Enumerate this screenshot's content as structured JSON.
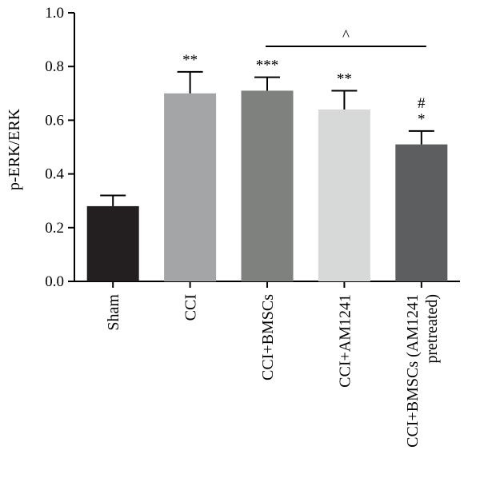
{
  "chart_data": {
    "type": "bar",
    "title": "",
    "xlabel": "",
    "ylabel": "p-ERK/ERK",
    "ylim": [
      0.0,
      1.0
    ],
    "yticks": [
      "0.0",
      "0.2",
      "0.4",
      "0.6",
      "0.8",
      "1.0"
    ],
    "grid": false,
    "categories": [
      [
        "Sham"
      ],
      [
        "CCI"
      ],
      [
        "CCI+BMSCs"
      ],
      [
        "CCI+AM1241"
      ],
      [
        "CCI+BMSCs (AM1241",
        "pretreated)"
      ]
    ],
    "values": [
      0.28,
      0.7,
      0.71,
      0.64,
      0.51
    ],
    "errors": [
      0.04,
      0.08,
      0.05,
      0.07,
      0.05
    ],
    "colors": [
      "#231f20",
      "#a4a5a7",
      "#7f817f",
      "#d7d8d8",
      "#5d5e60"
    ],
    "significance": [
      [],
      [
        "**"
      ],
      [
        "***"
      ],
      [
        "**"
      ],
      [
        "#",
        "*"
      ]
    ],
    "comparison": {
      "from": 2,
      "to": 4,
      "label": "^"
    }
  }
}
